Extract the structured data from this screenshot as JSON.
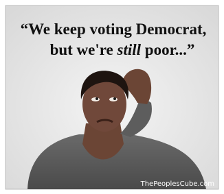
{
  "caption": {
    "line1": "“We keep voting Democrat,",
    "line2_start": "but we're",
    "line2_emphasis": "still",
    "line2_end": "poor...”"
  },
  "watermark": "ThePeoplesCube.com"
}
